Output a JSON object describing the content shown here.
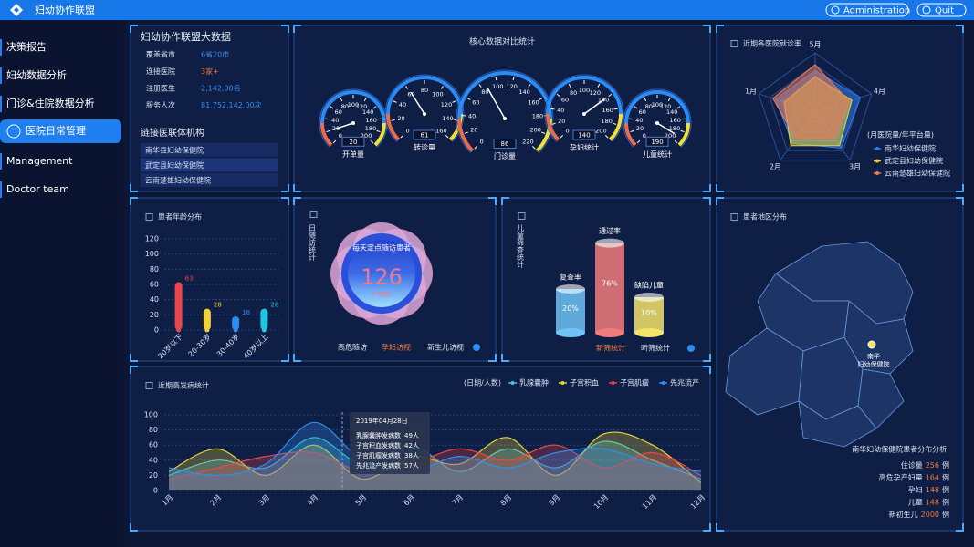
{
  "header": {
    "title": "妇幼协作联盟",
    "buttons": [
      "Administration",
      "Quit"
    ]
  },
  "sidebar": {
    "items": [
      "决策报告",
      "妇幼数据分析",
      "门诊&住院数据分析",
      "医院日常管理",
      "Management",
      "Doctor team"
    ],
    "active": 3
  },
  "summary": {
    "title": "妇幼协作联盟大数据",
    "rows": [
      [
        "覆盖省市",
        "6省20市"
      ],
      [
        "连接医院",
        "3家+"
      ],
      [
        "注册医生",
        "2,142,00名"
      ],
      [
        "服务人次",
        "81,752,142,00次"
      ]
    ],
    "institutions_title": "链接医联体机构",
    "institutions": [
      "南华县妇幼保健院",
      "武定县妇幼保健院",
      "云南楚雄妇幼保健院"
    ]
  },
  "core_title": "核心数据对比统计",
  "follow_up": {
    "title": "日随访统计",
    "caption": "每天定点随访患者",
    "count": 126,
    "unit": "户随访",
    "tabs": [
      "高危随访",
      "孕妇访视",
      "新生儿访视"
    ],
    "active_tab": 1
  },
  "screening_tabs": {
    "tabs": [
      "新筛统计",
      "听筛统计"
    ],
    "active_tab": 0
  },
  "region": {
    "title": "患者地区分布",
    "marker": [
      "南华",
      "妇幼保健院"
    ],
    "analysis_title": "南华妇幼保健院患者分布分析:",
    "rows": [
      [
        "住诊量",
        256,
        "例"
      ],
      [
        "高危孕产妇量",
        164,
        "例"
      ],
      [
        "孕妇",
        148,
        "例"
      ],
      [
        "儿童",
        148,
        "例"
      ],
      [
        "新初生儿",
        2000,
        "例"
      ]
    ]
  },
  "disease_tooltip": {
    "date": "2019年04月28日",
    "rows": [
      [
        "乳腺囊肿发病数",
        "49人"
      ],
      [
        "子宫积血发病数",
        "42人"
      ],
      [
        "子宫肌瘤发病数",
        "38人"
      ],
      [
        "先兆流产发病数",
        "57人"
      ]
    ]
  },
  "chart_data": [
    {
      "type": "gauge",
      "label": "开单量",
      "value": 20,
      "ylim": [
        0,
        200
      ],
      "yticks": [
        0,
        20,
        40,
        60,
        80,
        100,
        120,
        140,
        160,
        180,
        200
      ]
    },
    {
      "type": "gauge",
      "label": "转诊量",
      "value": 61,
      "ylim": [
        0,
        160
      ],
      "yticks": [
        0,
        20,
        40,
        60,
        80,
        100,
        120,
        140,
        160
      ]
    },
    {
      "type": "gauge",
      "label": "门诊量",
      "value": 86,
      "ylim": [
        0,
        220
      ],
      "yticks": [
        0,
        20,
        40,
        60,
        80,
        100,
        120,
        140,
        160,
        180,
        200,
        220
      ]
    },
    {
      "type": "gauge",
      "label": "孕妇统计",
      "value": 140,
      "ylim": [
        0,
        200
      ],
      "yticks": [
        0,
        20,
        40,
        60,
        80,
        100,
        120,
        140,
        160,
        180,
        200
      ]
    },
    {
      "type": "gauge",
      "label": "儿童统计",
      "value": 190,
      "ylim": [
        0,
        200
      ],
      "yticks": [
        0,
        20,
        40,
        60,
        80,
        100,
        120,
        140,
        160,
        180,
        200
      ]
    },
    {
      "type": "radar",
      "title": "近期各医院就诊率",
      "subtitle": "(月医院量/年平台量)",
      "categories": [
        "5月",
        "4月",
        "3月",
        "2月",
        "1月"
      ],
      "ylim": [
        0,
        100
      ],
      "series": [
        {
          "name": "南华妇幼保健院",
          "color": "#2f7ff0",
          "values": [
            70,
            80,
            75,
            65,
            70
          ]
        },
        {
          "name": "武定县妇幼保健院",
          "color": "#e8d23a",
          "values": [
            60,
            65,
            70,
            70,
            55
          ]
        },
        {
          "name": "云南楚雄妇幼保健院",
          "color": "#ef7a5a",
          "values": [
            80,
            60,
            55,
            55,
            75
          ]
        }
      ]
    },
    {
      "type": "bar",
      "title": "患者年龄分布",
      "categories": [
        "20岁以下",
        "20-30岁",
        "30-40岁",
        "40岁以上"
      ],
      "values": [
        63,
        28,
        18,
        28
      ],
      "colors": [
        "#e8474d",
        "#f2d13c",
        "#2c8cf0",
        "#1fc6e0"
      ],
      "ylim": [
        0,
        120
      ],
      "yticks": [
        0,
        20,
        40,
        60,
        80,
        100,
        120
      ]
    },
    {
      "type": "cylinder",
      "title": "儿童筛查统计",
      "categories": [
        "复查率",
        "通过率",
        "缺陷儿童"
      ],
      "values": [
        20,
        76,
        10
      ],
      "value_labels": [
        "20%",
        "76%",
        "10%"
      ],
      "colors": [
        "#6fc3f5",
        "#f07b7b",
        "#f5e36a"
      ]
    },
    {
      "type": "area",
      "title": "近期高发病统计",
      "subtitle": "(日期/人数)",
      "categories": [
        "1月",
        "2月",
        "3月",
        "4月",
        "5月",
        "6月",
        "7月",
        "8月",
        "9月",
        "10月",
        "11月",
        "12月"
      ],
      "ylim": [
        0,
        100
      ],
      "yticks": [
        0,
        20,
        40,
        60,
        80,
        100
      ],
      "series": [
        {
          "name": "乳腺囊肿",
          "color": "#3fc4d8",
          "values": [
            20,
            40,
            30,
            70,
            35,
            60,
            25,
            55,
            30,
            65,
            40,
            15
          ]
        },
        {
          "name": "子宫积血",
          "color": "#e8d23a",
          "values": [
            25,
            55,
            20,
            60,
            15,
            45,
            35,
            70,
            20,
            75,
            60,
            10
          ]
        },
        {
          "name": "子宫肌瘤",
          "color": "#e8474d",
          "values": [
            15,
            30,
            45,
            50,
            25,
            35,
            55,
            40,
            60,
            30,
            50,
            20
          ]
        },
        {
          "name": "先兆流产",
          "color": "#2f8ff0",
          "values": [
            30,
            20,
            35,
            90,
            40,
            25,
            45,
            30,
            50,
            55,
            35,
            25
          ]
        }
      ]
    }
  ]
}
